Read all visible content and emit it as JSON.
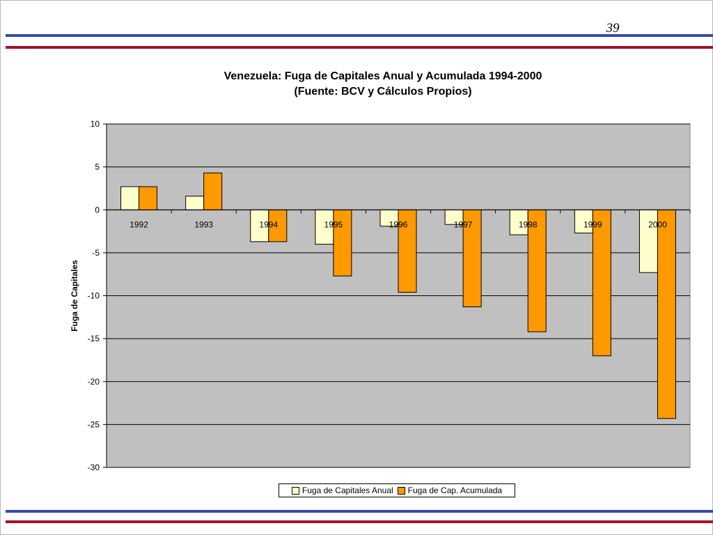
{
  "slide": {
    "page_number": "39",
    "colors": {
      "blue_rule": "#3a46b0",
      "red_rule": "#a3122f"
    }
  },
  "chart_data": {
    "type": "bar",
    "title": "Venezuela: Fuga de Capitales Anual y Acumulada 1994-2000",
    "subtitle": "(Fuente: BCV y Cálculos Propios)",
    "xlabel": "",
    "ylabel": "Fuga de Capitales",
    "ylim": [
      -30,
      10
    ],
    "yticks": [
      10,
      5,
      0,
      -5,
      -10,
      -15,
      -20,
      -25,
      -30
    ],
    "categories": [
      "1992",
      "1993",
      "1994",
      "1995",
      "1996",
      "1997",
      "1998",
      "1999",
      "2000"
    ],
    "series": [
      {
        "name": "Fuga de Capitales Anual",
        "color": "#ffffcc",
        "values": [
          2.7,
          1.6,
          -3.7,
          -4.0,
          -1.9,
          -1.7,
          -2.9,
          -2.7,
          -7.3
        ]
      },
      {
        "name": "Fuga de Cap. Acumulada",
        "color": "#ff9900",
        "values": [
          2.7,
          4.3,
          -3.7,
          -7.7,
          -9.6,
          -11.3,
          -14.2,
          -17.0,
          -24.3
        ]
      }
    ],
    "grid": true,
    "plot_background": "#c0c0c0",
    "legend_position": "bottom"
  }
}
